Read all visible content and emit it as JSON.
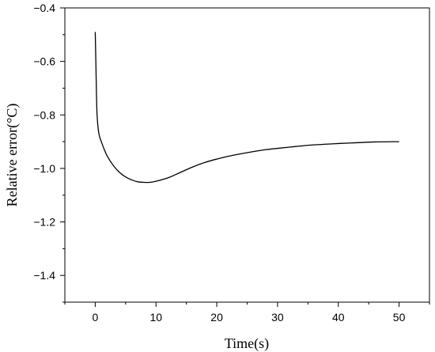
{
  "chart_data": {
    "type": "line",
    "title": "",
    "xlabel": "Time(s)",
    "ylabel": "Relative error(°C)",
    "xlim": [
      -5,
      55
    ],
    "ylim": [
      -1.5,
      -0.4
    ],
    "x_ticks": [
      0,
      10,
      20,
      30,
      40,
      50
    ],
    "x_tick_labels": [
      "0",
      "10",
      "20",
      "30",
      "40",
      "50"
    ],
    "y_ticks": [
      -0.4,
      -0.6,
      -0.8,
      -1.0,
      -1.2,
      -1.4
    ],
    "y_tick_labels": [
      "−0.4",
      "−0.6",
      "−0.8",
      "−1.0",
      "−1.2",
      "−1.4"
    ],
    "grid": false,
    "legend": "none",
    "series": [
      {
        "color": "#000000",
        "x": [
          0,
          0.1,
          0.2,
          0.3,
          0.5,
          0.7,
          1,
          1.5,
          2,
          3,
          4,
          5,
          6,
          7,
          8,
          9,
          10,
          12,
          14,
          16,
          18,
          20,
          22,
          25,
          28,
          30,
          33,
          36,
          40,
          43,
          46,
          50
        ],
        "y": [
          -0.49,
          -0.6,
          -0.72,
          -0.8,
          -0.855,
          -0.88,
          -0.9,
          -0.93,
          -0.955,
          -0.99,
          -1.015,
          -1.032,
          -1.043,
          -1.05,
          -1.052,
          -1.052,
          -1.048,
          -1.035,
          -1.015,
          -0.995,
          -0.978,
          -0.965,
          -0.954,
          -0.941,
          -0.93,
          -0.925,
          -0.918,
          -0.912,
          -0.907,
          -0.904,
          -0.901,
          -0.9
        ]
      }
    ]
  }
}
